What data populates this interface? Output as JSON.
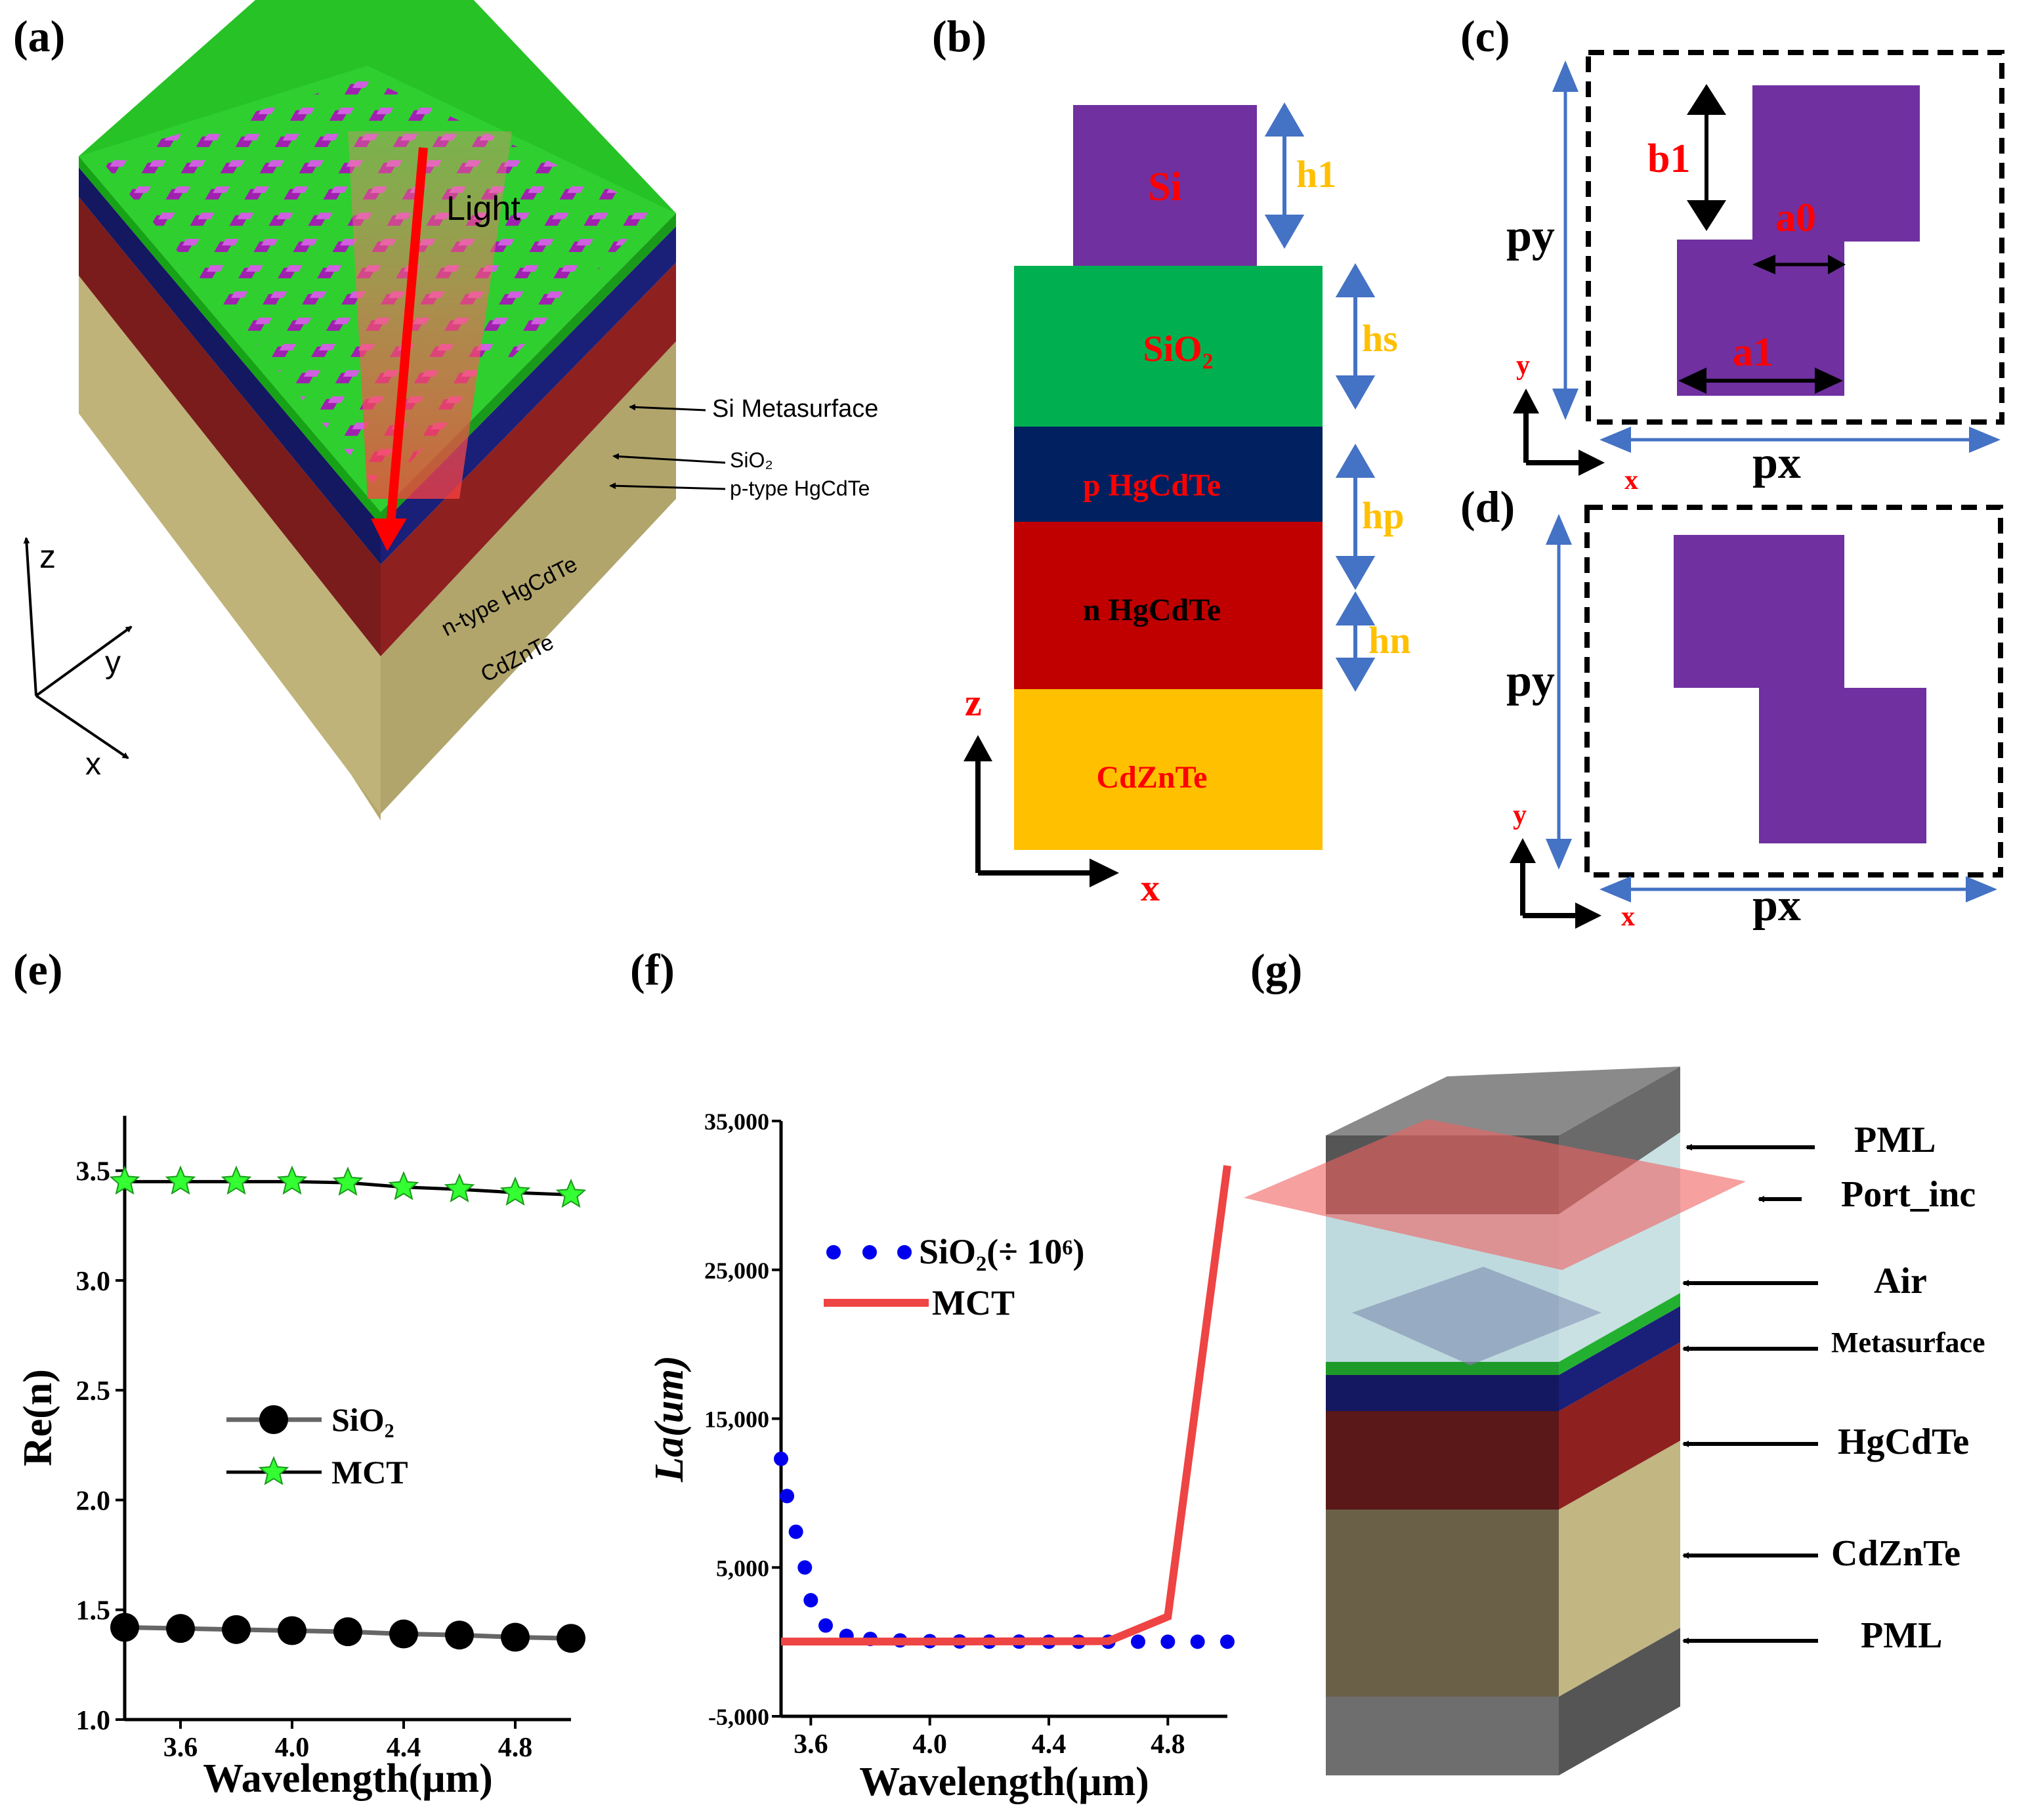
{
  "panels": {
    "a": "(a)",
    "b": "(b)",
    "c": "(c)",
    "d": "(d)",
    "e": "(e)",
    "f": "(f)",
    "g": "(g)"
  },
  "panel_a": {
    "light": "Light",
    "labels": [
      "Si Metasurface",
      "SiO₂",
      "p-type HgCdTe",
      "n-type HgCdTe",
      "CdZnTe"
    ],
    "axes": {
      "z": "z",
      "y": "y",
      "x": "x"
    }
  },
  "panel_b": {
    "layers": [
      "Si",
      "SiO₂",
      "p HgCdTe",
      "n HgCdTe",
      "CdZnTe"
    ],
    "dims": [
      "h1",
      "hs",
      "hp",
      "hn"
    ],
    "axes": {
      "z": "z",
      "x": "x"
    }
  },
  "panel_c": {
    "b1": "b1",
    "a0": "a0",
    "a1": "a1",
    "py": "py",
    "px": "px",
    "y": "y",
    "x": "x"
  },
  "panel_d": {
    "py": "py",
    "px": "px",
    "y": "y",
    "x": "x"
  },
  "panel_g": {
    "labels": [
      "PML",
      "Port_inc",
      "Air",
      "Metasurface",
      "HgCdTe",
      "CdZnTe",
      "PML"
    ]
  },
  "colors": {
    "purple": "#7030a0",
    "green": "#00b050",
    "navy": "#002060",
    "red": "#c00000",
    "gold": "#ffc000",
    "blue": "#4472c4",
    "star": "#33ff33",
    "mct": "#ee4444"
  },
  "chart_data": [
    {
      "type": "line",
      "panel": "e",
      "xlabel": "Wavelength(μm)",
      "ylabel": "Re(n)",
      "xlim": [
        3.4,
        5.0
      ],
      "ylim": [
        1.0,
        3.75
      ],
      "xticks": [
        "3.6",
        "4.0",
        "4.4",
        "4.8"
      ],
      "yticks": [
        "1.0",
        "1.5",
        "2.0",
        "2.5",
        "3.0",
        "3.5"
      ],
      "legend": [
        "SiO₂",
        "MCT"
      ],
      "series": [
        {
          "name": "SiO₂",
          "x": [
            3.4,
            3.6,
            3.8,
            4.0,
            4.2,
            4.4,
            4.6,
            4.8,
            5.0
          ],
          "values": [
            1.42,
            1.415,
            1.41,
            1.405,
            1.4,
            1.39,
            1.385,
            1.375,
            1.37
          ]
        },
        {
          "name": "MCT",
          "x": [
            3.4,
            3.6,
            3.8,
            4.0,
            4.2,
            4.4,
            4.6,
            4.8,
            5.0
          ],
          "values": [
            3.45,
            3.45,
            3.45,
            3.45,
            3.445,
            3.425,
            3.415,
            3.4,
            3.39
          ]
        }
      ]
    },
    {
      "type": "line",
      "panel": "f",
      "xlabel": "Wavelength(μm)",
      "ylabel": "La(um)",
      "xlim": [
        3.5,
        5.0
      ],
      "ylim": [
        -5000,
        35000
      ],
      "xticks": [
        "3.6",
        "4.0",
        "4.4",
        "4.8"
      ],
      "yticks": [
        "-5,000",
        "5,000",
        "15,000",
        "25,000",
        "35,000"
      ],
      "legend": [
        "SiO₂(÷ 10⁶)",
        "MCT"
      ],
      "series": [
        {
          "name": "SiO₂(÷ 10⁶)",
          "x": [
            3.5,
            3.52,
            3.55,
            3.58,
            3.6,
            3.65,
            3.72,
            3.8,
            3.9,
            4.0,
            4.1,
            4.2,
            4.3,
            4.4,
            4.5,
            4.6,
            4.7,
            4.8,
            4.9,
            5.0
          ],
          "values": [
            12300,
            9800,
            7400,
            5000,
            2800,
            1100,
            400,
            200,
            100,
            50,
            30,
            20,
            20,
            10,
            10,
            10,
            10,
            10,
            10,
            10
          ]
        },
        {
          "name": "MCT",
          "x": [
            3.5,
            4.0,
            4.6,
            4.8,
            5.0
          ],
          "values": [
            20,
            20,
            50,
            1700,
            32000
          ]
        }
      ]
    }
  ]
}
